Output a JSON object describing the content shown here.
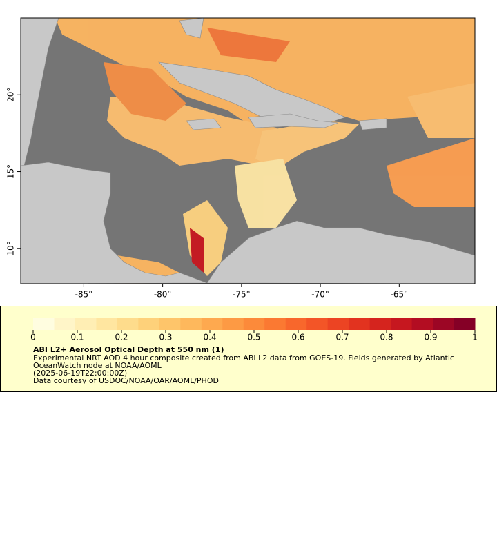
{
  "map": {
    "xlim": [
      -89,
      -60.2
    ],
    "ylim": [
      7.7,
      25
    ],
    "xticks": [
      {
        "value": -85,
        "label": "-85°"
      },
      {
        "value": -80,
        "label": "-80°"
      },
      {
        "value": -75,
        "label": "-75°"
      },
      {
        "value": -70,
        "label": "-70°"
      },
      {
        "value": -65,
        "label": "-65°"
      }
    ],
    "yticks": [
      {
        "value": 10,
        "label": "10°"
      },
      {
        "value": 15,
        "label": "15°"
      },
      {
        "value": 20,
        "label": "20°"
      }
    ]
  },
  "colorbar": {
    "range": [
      0,
      1
    ],
    "ticks": [
      0,
      0.1,
      0.2,
      0.3,
      0.4,
      0.5,
      0.6,
      0.7,
      0.8,
      0.9,
      1
    ],
    "colors": [
      "#fffde0",
      "#fff5c8",
      "#ffeeb4",
      "#ffe6a0",
      "#fedc8c",
      "#fed17a",
      "#fec56a",
      "#feb85c",
      "#fea94f",
      "#fd9a44",
      "#fc8a3a",
      "#fb7932",
      "#f8672c",
      "#f35527",
      "#ec4423",
      "#e2331f",
      "#d5241e",
      "#c6171f",
      "#b30d22",
      "#9c0625",
      "#850026"
    ]
  },
  "legend": {
    "title": "ABI L2+ Aerosol Optical Depth at 550 nm (1)",
    "lines": [
      "Experimental NRT AOD 4 hour composite created from ABI L2 data from GOES-19. Fields generated by Atlantic",
      "OceanWatch node at NOAA/AOML",
      "(2025-06-19T22:00:00Z)",
      "Data courtesy of USDOC/NOAA/OAR/AOML/PHOD"
    ]
  }
}
